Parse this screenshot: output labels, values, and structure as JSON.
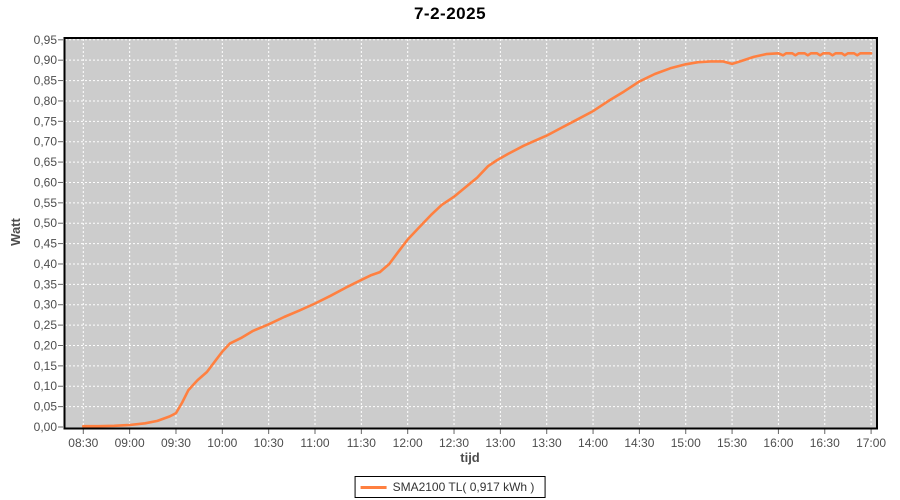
{
  "chart_data": {
    "type": "line",
    "title": "7-2-2025",
    "xlabel": "tijd",
    "ylabel": "Watt",
    "x_tick_labels": [
      "08:30",
      "09:00",
      "09:30",
      "10:00",
      "10:30",
      "11:00",
      "11:30",
      "12:00",
      "12:30",
      "13:00",
      "13:30",
      "14:00",
      "14:30",
      "15:00",
      "15:30",
      "16:00",
      "16:30",
      "17:00"
    ],
    "y_tick_labels": [
      "0,00",
      "0,05",
      "0,10",
      "0,15",
      "0,20",
      "0,25",
      "0,30",
      "0,35",
      "0,40",
      "0,45",
      "0,50",
      "0,55",
      "0,60",
      "0,65",
      "0,70",
      "0,75",
      "0,80",
      "0,85",
      "0,90",
      "0,95"
    ],
    "ylim": [
      0,
      0.95
    ],
    "xlim": [
      "08:30",
      "17:00"
    ],
    "grid": "white dashed gridlines on gray plot background",
    "legend_position": "bottom-center",
    "series": [
      {
        "name": "SMA2100 TL( 0,917 kWh )",
        "color": "#ff8040",
        "total_kwh_label": "0,917",
        "points": [
          [
            "08:30",
            0.002
          ],
          [
            "08:40",
            0.002
          ],
          [
            "08:50",
            0.003
          ],
          [
            "09:00",
            0.005
          ],
          [
            "09:10",
            0.009
          ],
          [
            "09:18",
            0.015
          ],
          [
            "09:26",
            0.026
          ],
          [
            "09:30",
            0.034
          ],
          [
            "09:34",
            0.06
          ],
          [
            "09:38",
            0.09
          ],
          [
            "09:44",
            0.115
          ],
          [
            "09:50",
            0.135
          ],
          [
            "09:56",
            0.165
          ],
          [
            "10:00",
            0.185
          ],
          [
            "10:05",
            0.205
          ],
          [
            "10:12",
            0.218
          ],
          [
            "10:20",
            0.236
          ],
          [
            "10:30",
            0.252
          ],
          [
            "10:40",
            0.27
          ],
          [
            "10:50",
            0.286
          ],
          [
            "11:00",
            0.303
          ],
          [
            "11:10",
            0.322
          ],
          [
            "11:20",
            0.342
          ],
          [
            "11:30",
            0.361
          ],
          [
            "11:36",
            0.372
          ],
          [
            "11:42",
            0.38
          ],
          [
            "11:48",
            0.4
          ],
          [
            "11:54",
            0.43
          ],
          [
            "12:00",
            0.46
          ],
          [
            "12:08",
            0.492
          ],
          [
            "12:15",
            0.52
          ],
          [
            "12:22",
            0.545
          ],
          [
            "12:30",
            0.565
          ],
          [
            "12:38",
            0.59
          ],
          [
            "12:45",
            0.612
          ],
          [
            "12:52",
            0.64
          ],
          [
            "12:58",
            0.655
          ],
          [
            "13:05",
            0.67
          ],
          [
            "13:15",
            0.69
          ],
          [
            "13:22",
            0.702
          ],
          [
            "13:30",
            0.715
          ],
          [
            "13:40",
            0.735
          ],
          [
            "13:50",
            0.755
          ],
          [
            "14:00",
            0.775
          ],
          [
            "14:10",
            0.8
          ],
          [
            "14:20",
            0.823
          ],
          [
            "14:30",
            0.848
          ],
          [
            "14:40",
            0.866
          ],
          [
            "14:50",
            0.88
          ],
          [
            "15:00",
            0.89
          ],
          [
            "15:08",
            0.895
          ],
          [
            "15:16",
            0.897
          ],
          [
            "15:24",
            0.897
          ],
          [
            "15:30",
            0.891
          ],
          [
            "15:36",
            0.898
          ],
          [
            "15:44",
            0.908
          ],
          [
            "15:52",
            0.915
          ],
          [
            "16:00",
            0.917
          ],
          [
            "16:03",
            0.912
          ],
          [
            "16:05",
            0.917
          ],
          [
            "16:09",
            0.917
          ],
          [
            "16:11",
            0.912
          ],
          [
            "16:13",
            0.917
          ],
          [
            "16:17",
            0.917
          ],
          [
            "16:19",
            0.912
          ],
          [
            "16:21",
            0.917
          ],
          [
            "16:25",
            0.917
          ],
          [
            "16:27",
            0.912
          ],
          [
            "16:29",
            0.917
          ],
          [
            "16:33",
            0.917
          ],
          [
            "16:35",
            0.912
          ],
          [
            "16:37",
            0.917
          ],
          [
            "16:41",
            0.917
          ],
          [
            "16:43",
            0.912
          ],
          [
            "16:45",
            0.917
          ],
          [
            "16:49",
            0.917
          ],
          [
            "16:51",
            0.912
          ],
          [
            "16:53",
            0.917
          ],
          [
            "17:00",
            0.917
          ]
        ]
      }
    ],
    "colors": {
      "page_bg": "#ffffff",
      "plot_bg": "#cccccc",
      "grid": "#ffffff",
      "plot_border": "#000000",
      "tick_mark": "#666666",
      "tick_text": "#4d4d4d",
      "axis_title_text": "#4d4d4d",
      "title_text": "#000000",
      "legend_border": "#000000",
      "legend_bg": "#ffffff",
      "legend_text": "#333333"
    }
  }
}
